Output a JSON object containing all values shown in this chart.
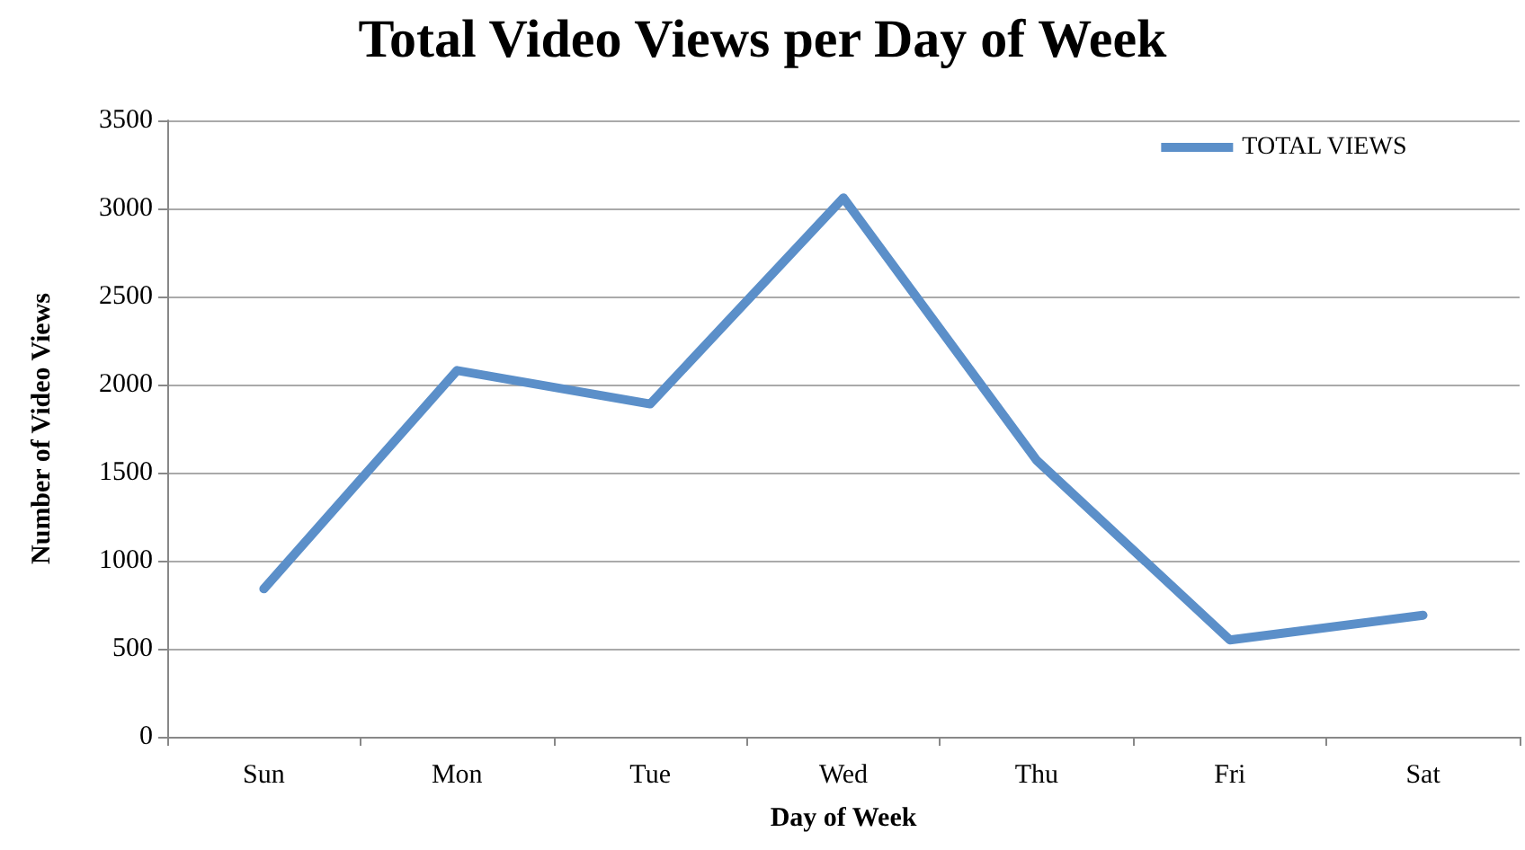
{
  "chart_data": {
    "type": "line",
    "title": "Total Video Views per Day of Week",
    "xlabel": "Day of Week",
    "ylabel": "Number of Video Views",
    "categories": [
      "Sun",
      "Mon",
      "Tue",
      "Wed",
      "Thu",
      "Fri",
      "Sat"
    ],
    "series": [
      {
        "name": "TOTAL VIEWS",
        "color": "#5b8fc9",
        "values": [
          840,
          2080,
          1890,
          3060,
          1570,
          550,
          690
        ]
      }
    ],
    "ylim": [
      0,
      3500
    ],
    "yticks": [
      0,
      500,
      1000,
      1500,
      2000,
      2500,
      3000,
      3500
    ],
    "grid": "y",
    "legend": "top right",
    "marker": "none",
    "line_style": "solid"
  }
}
